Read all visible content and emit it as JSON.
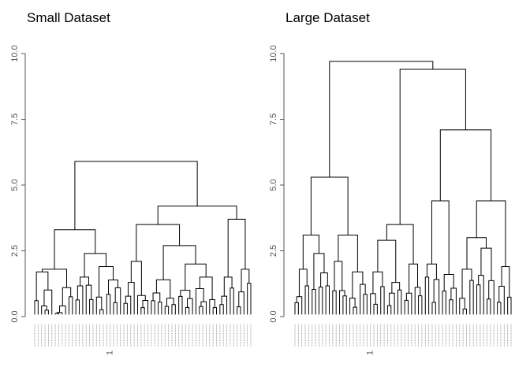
{
  "chart_data": [
    {
      "type": "dendrogram",
      "title": "Small Dataset",
      "ylim": [
        0,
        10
      ],
      "yticks": [
        "0.0",
        "2.5",
        "5.0",
        "7.5",
        "10.0"
      ],
      "grid": false,
      "leaf_count": 64,
      "merge_heights": {
        "root": 5.9,
        "left_cluster": 3.3,
        "right_cluster": 4.2,
        "right_sub_a": 3.5,
        "right_sub_b": 3.7,
        "right_sub_a_inner": 2.7,
        "right_sub_a_inner_2": 2.0
      },
      "leaf_labels_visible": "1"
    },
    {
      "type": "dendrogram",
      "title": "Large Dataset",
      "ylim": [
        0,
        10
      ],
      "yticks": [
        "0.0",
        "2.5",
        "5.0",
        "7.5",
        "10.0"
      ],
      "grid": false,
      "leaf_count": 64,
      "merge_heights": {
        "root": 9.7,
        "left_cluster": 5.3,
        "right_cluster": 9.4,
        "left_sub_a": 3.1,
        "left_sub_b": 3.1,
        "right_sub_a": 3.5,
        "right_sub_b": 7.1,
        "right_sub_b_inner": 4.4,
        "right_sub_b_inner_2": 3.0
      },
      "leaf_labels_visible": "1"
    }
  ]
}
